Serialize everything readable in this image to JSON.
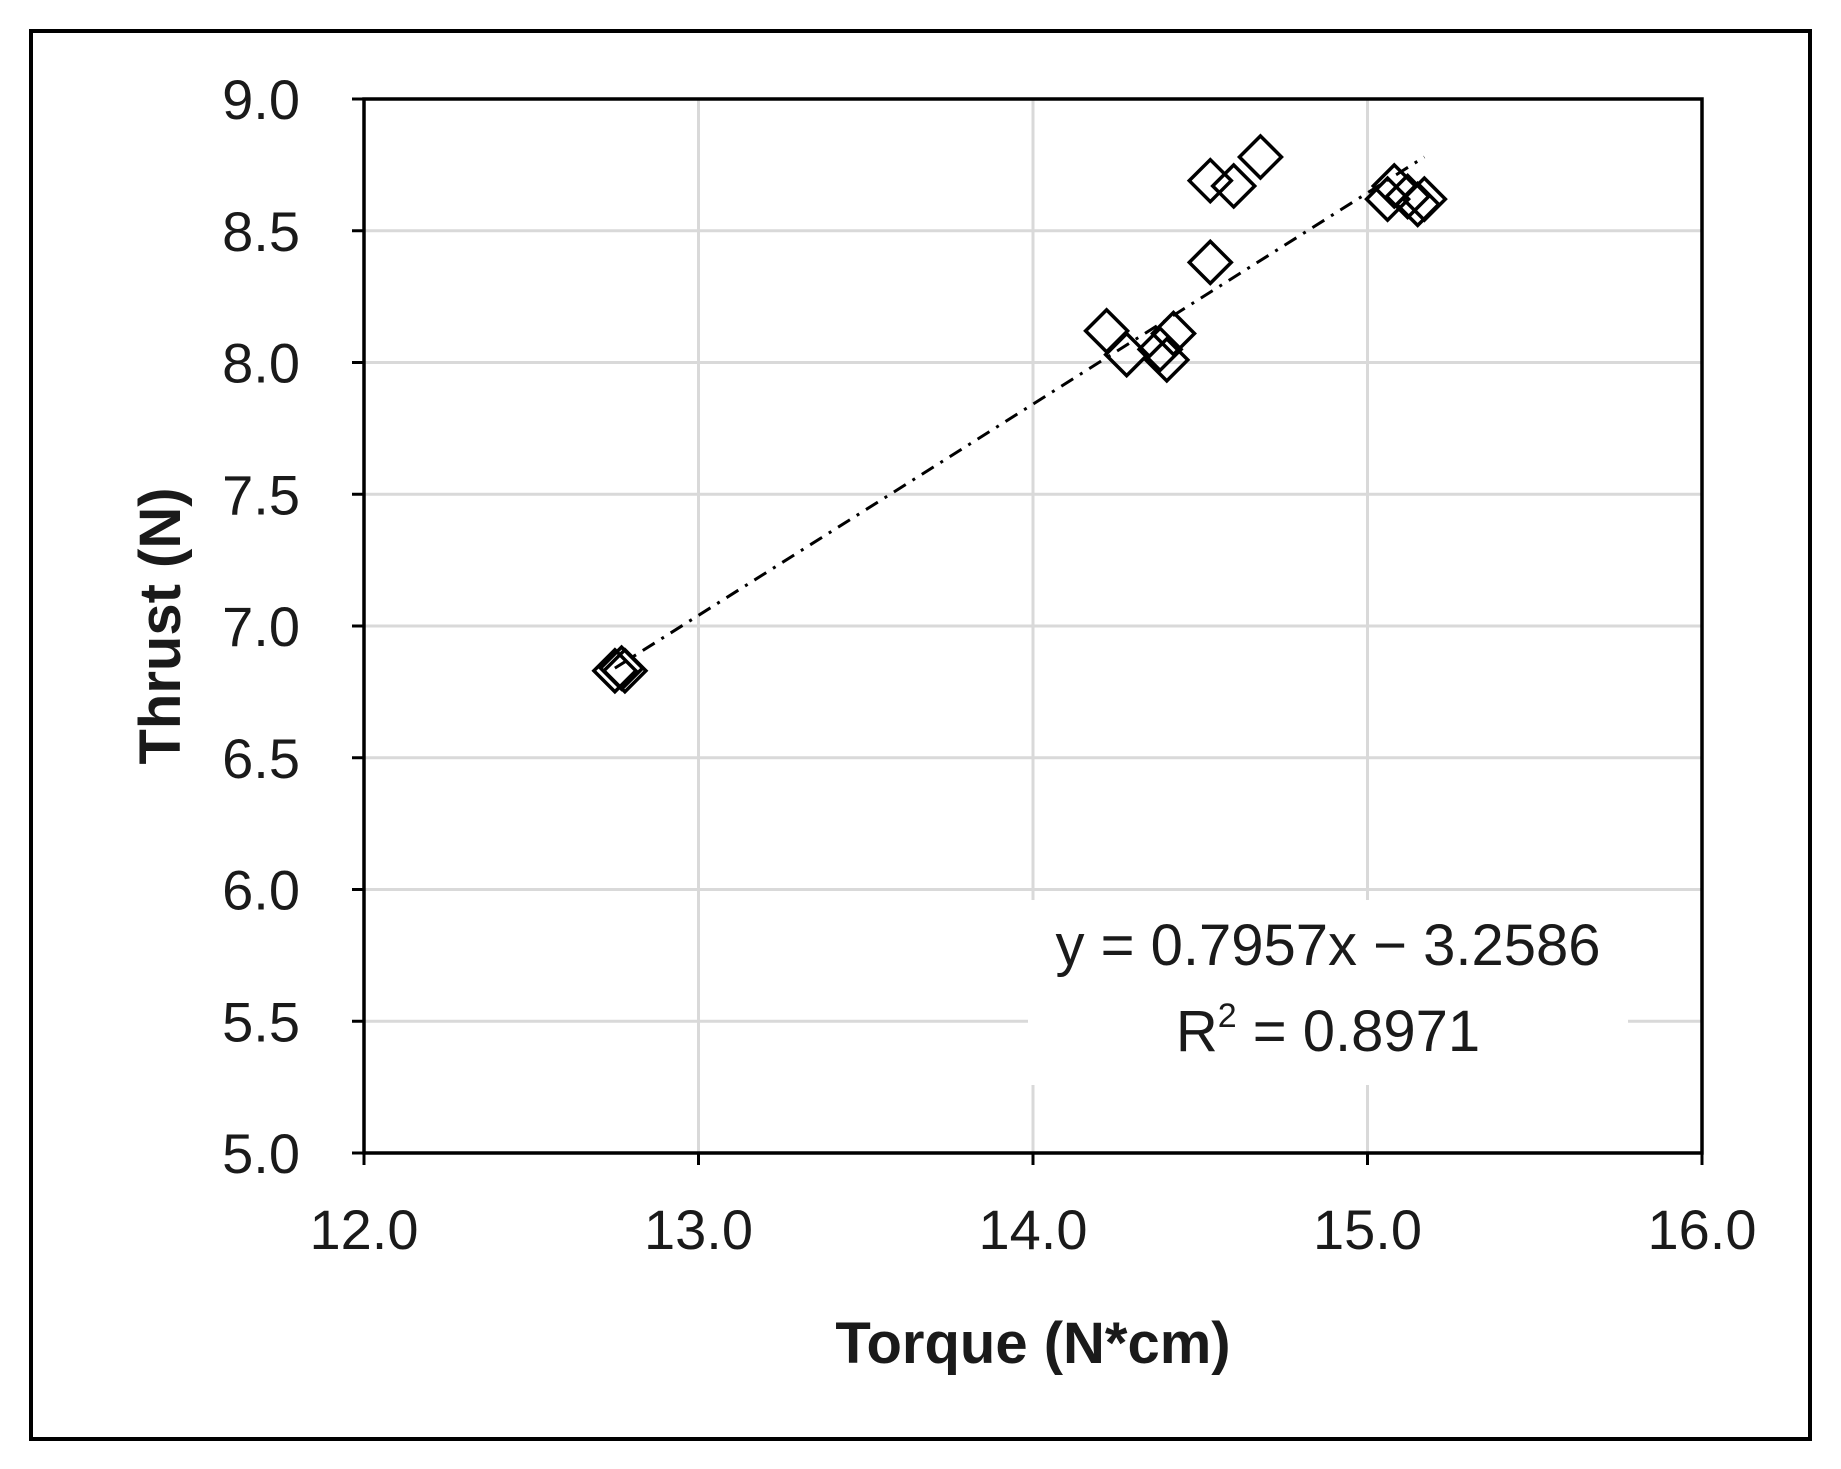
{
  "chart_data": {
    "type": "scatter",
    "title": "",
    "xlabel": "Torque (N*cm)",
    "ylabel": "Thrust (N)",
    "xlim": [
      12.0,
      16.0
    ],
    "ylim": [
      5.0,
      9.0
    ],
    "xticks": [
      "12.0",
      "13.0",
      "14.0",
      "15.0",
      "16.0"
    ],
    "yticks": [
      "5.0",
      "5.5",
      "6.0",
      "6.5",
      "7.0",
      "7.5",
      "8.0",
      "8.5",
      "9.0"
    ],
    "grid": true,
    "legend": "none",
    "marker": "hollow-diamond",
    "points": [
      {
        "x": 12.75,
        "y": 6.83
      },
      {
        "x": 12.77,
        "y": 6.84
      },
      {
        "x": 12.78,
        "y": 6.83
      },
      {
        "x": 14.22,
        "y": 8.12
      },
      {
        "x": 14.28,
        "y": 8.03
      },
      {
        "x": 14.38,
        "y": 8.05
      },
      {
        "x": 14.4,
        "y": 8.01
      },
      {
        "x": 14.42,
        "y": 8.11
      },
      {
        "x": 14.53,
        "y": 8.38
      },
      {
        "x": 14.53,
        "y": 8.69
      },
      {
        "x": 14.6,
        "y": 8.67
      },
      {
        "x": 14.68,
        "y": 8.78
      },
      {
        "x": 15.06,
        "y": 8.62
      },
      {
        "x": 15.08,
        "y": 8.67
      },
      {
        "x": 15.12,
        "y": 8.63
      },
      {
        "x": 15.15,
        "y": 8.6
      },
      {
        "x": 15.17,
        "y": 8.62
      }
    ],
    "trendline": {
      "style": "dash-dot",
      "x_range": [
        12.75,
        15.17
      ],
      "y_range": [
        6.84,
        8.78
      ],
      "equation": "y = 0.7957x − 3.2586",
      "r2_label": "R",
      "r2_exponent": "2",
      "r2_value": " = 0.8971"
    }
  }
}
